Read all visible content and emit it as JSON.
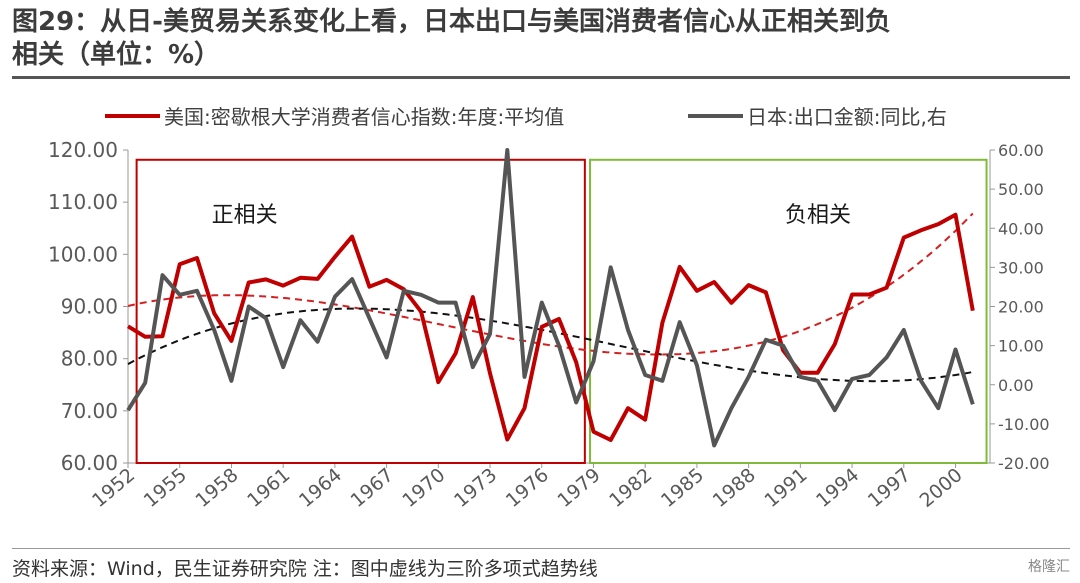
{
  "header": {
    "title_line1": "图29：从日-美贸易关系变化上看，日本出口与美国消费者信心从正相关到负",
    "title_line2": "相关（单位：%）"
  },
  "footer": {
    "source": "资料来源：Wind，民生证券研究院 注：图中虚线为三阶多项式趋势线",
    "watermark": "格隆汇"
  },
  "chart_data": {
    "type": "line",
    "legend_position": "top",
    "x": [
      1952,
      1953,
      1954,
      1955,
      1956,
      1957,
      1958,
      1959,
      1960,
      1961,
      1962,
      1963,
      1964,
      1965,
      1966,
      1967,
      1968,
      1969,
      1970,
      1971,
      1972,
      1973,
      1974,
      1975,
      1976,
      1977,
      1978,
      1979,
      1980,
      1981,
      1982,
      1983,
      1984,
      1985,
      1986,
      1987,
      1988,
      1989,
      1990,
      1991,
      1992,
      1993,
      1994,
      1995,
      1996,
      1997,
      1998,
      1999,
      2000,
      2001
    ],
    "x_tick_labels": [
      "1952",
      "1955",
      "1958",
      "1961",
      "1964",
      "1967",
      "1970",
      "1973",
      "1976",
      "1979",
      "1982",
      "1985",
      "1988",
      "1991",
      "1994",
      "1997",
      "2000"
    ],
    "x_tick_values": [
      1952,
      1955,
      1958,
      1961,
      1964,
      1967,
      1970,
      1973,
      1976,
      1979,
      1982,
      1985,
      1988,
      1991,
      1994,
      1997,
      2000
    ],
    "y_left": {
      "min": 60,
      "max": 120,
      "ticks": [
        "60.00",
        "70.00",
        "80.00",
        "90.00",
        "100.00",
        "110.00",
        "120.00"
      ]
    },
    "y_right": {
      "min": -20,
      "max": 60,
      "ticks": [
        "-20.00",
        "-10.00",
        "0.00",
        "10.00",
        "20.00",
        "30.00",
        "40.00",
        "50.00",
        "60.00"
      ]
    },
    "series": [
      {
        "name": "美国:密歇根大学消费者信心指数:年度:平均值",
        "axis": "left",
        "color": "#c00000",
        "values": [
          86.2,
          84.2,
          84.3,
          98.1,
          99.3,
          88.7,
          83.4,
          94.6,
          95.2,
          94.0,
          95.5,
          95.3,
          99.5,
          103.4,
          93.8,
          95.1,
          93.3,
          89.0,
          75.5,
          81.0,
          91.8,
          77.2,
          64.5,
          70.5,
          86.1,
          87.6,
          79.3,
          66.0,
          64.4,
          70.5,
          68.3,
          86.9,
          97.6,
          93.0,
          94.7,
          90.7,
          94.1,
          92.7,
          81.6,
          77.3,
          77.3,
          82.8,
          92.3,
          92.3,
          93.6,
          103.2,
          104.6,
          105.8,
          107.6,
          89.2
        ]
      },
      {
        "name": "日本:出口金额:同比,右",
        "axis": "right",
        "color": "#555555",
        "values": [
          -6.5,
          0.5,
          28.0,
          23.0,
          24.0,
          14.0,
          1.0,
          20.0,
          17.0,
          4.5,
          16.5,
          11.0,
          22.5,
          27.0,
          17.0,
          7.0,
          24.0,
          23.0,
          21.0,
          21.0,
          4.5,
          13.0,
          60.0,
          2.0,
          21.0,
          10.0,
          -4.5,
          6.0,
          30.0,
          14.0,
          2.5,
          1.0,
          16.0,
          5.0,
          -15.5,
          -6.0,
          2.0,
          11.5,
          10.0,
          2.0,
          1.0,
          -6.5,
          1.5,
          2.5,
          7.0,
          14.0,
          1.0,
          -6.0,
          9.0,
          -5.0
        ]
      }
    ],
    "trend_lines": [
      {
        "of": "美国:密歇根大学消费者信心指数:年度:平均值",
        "axis": "left",
        "color": "#d42020",
        "style": "dashed",
        "degree": 3
      },
      {
        "of": "日本:出口金额:同比,右",
        "axis": "right",
        "color": "#111111",
        "style": "dashed",
        "degree": 3
      }
    ],
    "annotations": [
      {
        "label": "正相关",
        "from": 1952.5,
        "to": 1978.5,
        "color": "#c00000"
      },
      {
        "label": "负相关",
        "from": 1978.8,
        "to": 2001.8,
        "color": "#7fba3a"
      }
    ]
  }
}
